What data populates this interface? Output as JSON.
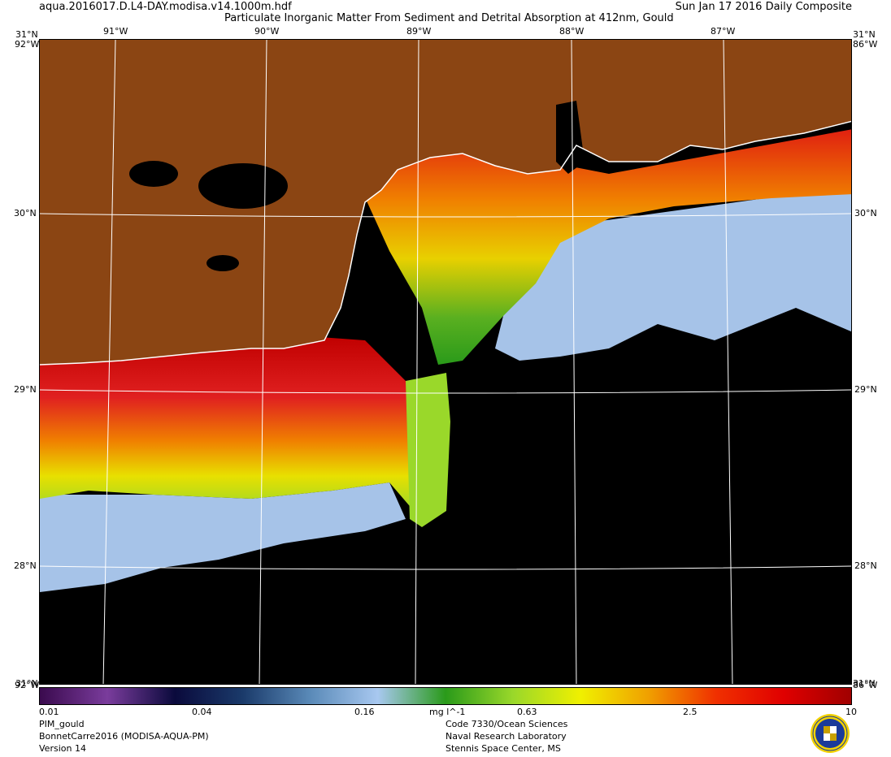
{
  "header": {
    "filename": "aqua.2016017.D.L4-DAY.modisa.v14.1000m.hdf",
    "title": "Particulate Inorganic Matter From Sediment and Detrital Absorption at 412nm, Gould",
    "date_label": "Sun Jan 17 2016 Daily Composite"
  },
  "map": {
    "top_corner_left": "31°N",
    "top_corner_right": "31°N",
    "bottom_corner_left": "31°N",
    "bottom_corner_right": "31°N",
    "corner_lon_left": "92°W",
    "corner_lon_right": "86°W",
    "lon_labels": [
      "91°W",
      "90°W",
      "89°W",
      "88°W",
      "87°W"
    ],
    "lat_labels": [
      "30°N",
      "29°N",
      "28°N"
    ],
    "colors": {
      "land": "#8b4513",
      "no_data": "#000000",
      "clear_water": "#a6c3e8",
      "coast": "#ffffff",
      "grid": "#ffffff"
    }
  },
  "colorbar": {
    "tick_labels": [
      "0.01",
      "0.04",
      "0.16",
      "0.63",
      "2.5",
      "10"
    ],
    "units": "mg l^-1",
    "colors": [
      "#3a0a4e",
      "#7a3c9c",
      "#0a0a3c",
      "#1a3a6a",
      "#5a8ab8",
      "#a8c8f0",
      "#2a9a1a",
      "#9ad82a",
      "#f0f000",
      "#f0a000",
      "#f03000",
      "#e00000",
      "#a00000"
    ]
  },
  "footer": {
    "left": [
      "PIM_gould",
      "BonnetCarre2016 (MODISA-AQUA-PM)",
      "Version 14"
    ],
    "center": [
      "Code 7330/Ocean Sciences",
      "Naval Research Laboratory",
      "Stennis Space Center, MS"
    ],
    "logo_icon": "nrl-seal-icon"
  }
}
